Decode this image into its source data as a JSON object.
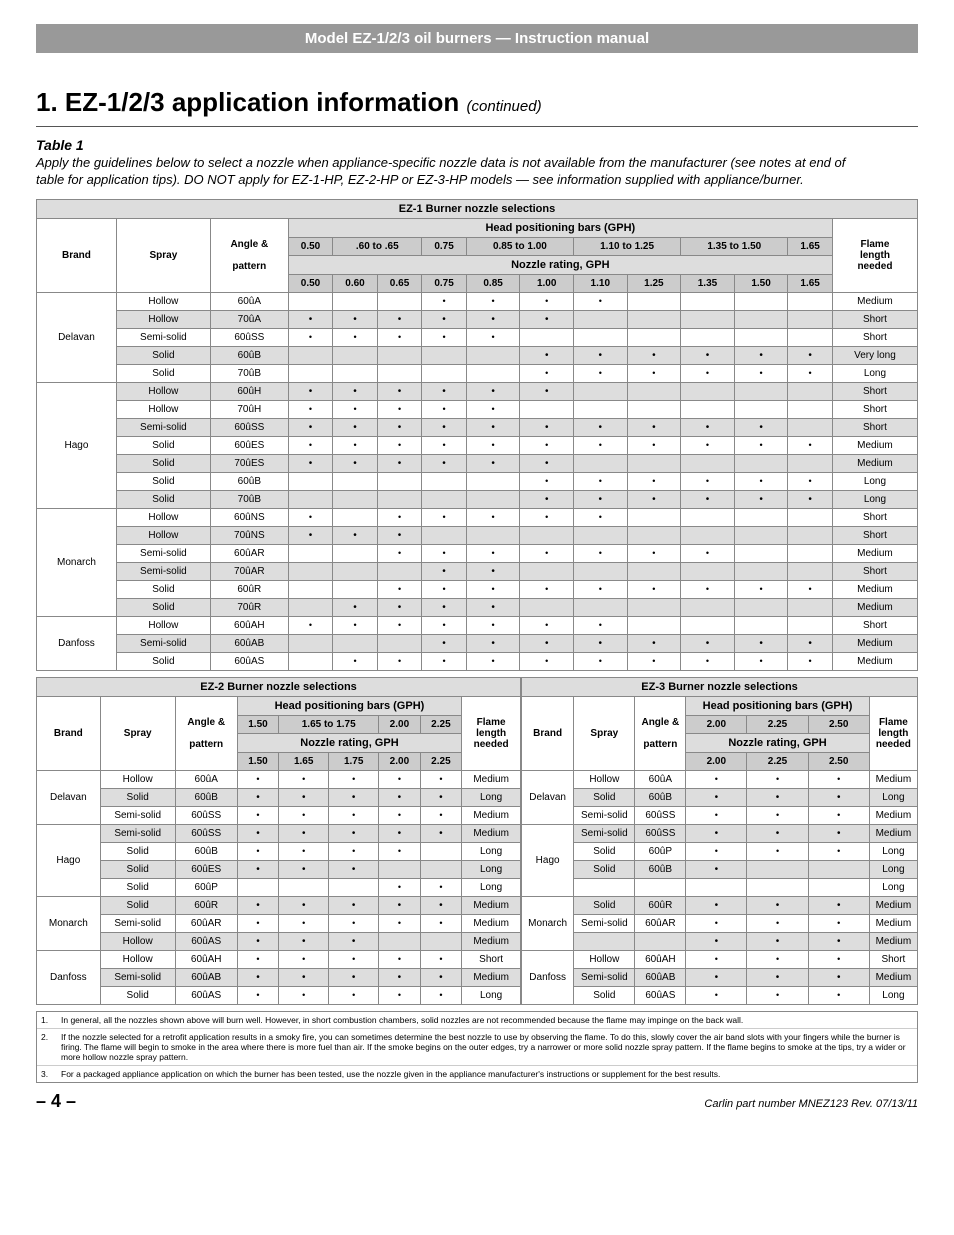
{
  "colors": {
    "topbar_bg": "#999999",
    "topbar_fg": "#ffffff",
    "band_bg": "#dddddd",
    "hdr2_bg": "#cccccc",
    "shade_bg": "#dddddd",
    "border": "#888888"
  },
  "topbar": "Model EZ-1/2/3 oil burners — Instruction manual",
  "section_title_pre": "1.  EZ-1/2/3 application information",
  "section_title_cont": "(continued)",
  "table_label": "Table 1",
  "table_caption": "Apply the guidelines below to select a nozzle when appliance-specific nozzle data is not available from the manufacturer (see notes at end of table for application tips). DO NOT apply for EZ-1-HP, EZ-2-HP or EZ-3-HP models — see information supplied with appliance/burner.",
  "ez1": {
    "title": "EZ-1 Burner nozzle selections",
    "head_pos": "Head positioning bars (GPH)",
    "nozzle_rating": "Nozzle rating, GPH",
    "col_brand": "Brand",
    "col_spray": "Spray",
    "col_angle": "Angle & pattern",
    "col_flame": "Flame length needed",
    "top_cols": [
      "0.50",
      ".60 to .65",
      "0.75",
      "0.85 to 1.00",
      "1.10 to 1.25",
      "1.35 to 1.50",
      "1.65"
    ],
    "rating_cols": [
      "0.50",
      "0.60",
      "0.65",
      "0.75",
      "0.85",
      "1.00",
      "1.10",
      "1.25",
      "1.35",
      "1.50",
      "1.65"
    ],
    "groups": [
      {
        "brand": "Delavan",
        "rows": [
          {
            "spray": "Hollow",
            "ap": "60ûA",
            "d": [
              0,
              0,
              0,
              1,
              1,
              1,
              1,
              0,
              0,
              0,
              0
            ],
            "fl": "Medium",
            "s": 0
          },
          {
            "spray": "Hollow",
            "ap": "70ûA",
            "d": [
              1,
              1,
              1,
              1,
              1,
              1,
              0,
              0,
              0,
              0,
              0
            ],
            "fl": "Short",
            "s": 1
          },
          {
            "spray": "Semi-solid",
            "ap": "60ûSS",
            "d": [
              1,
              1,
              1,
              1,
              1,
              0,
              0,
              0,
              0,
              0,
              0
            ],
            "fl": "Short",
            "s": 0
          },
          {
            "spray": "Solid",
            "ap": "60ûB",
            "d": [
              0,
              0,
              0,
              0,
              0,
              1,
              1,
              1,
              1,
              1,
              1
            ],
            "fl": "Very long",
            "s": 1
          },
          {
            "spray": "Solid",
            "ap": "70ûB",
            "d": [
              0,
              0,
              0,
              0,
              0,
              1,
              1,
              1,
              1,
              1,
              1
            ],
            "fl": "Long",
            "s": 0
          }
        ]
      },
      {
        "brand": "Hago",
        "rows": [
          {
            "spray": "Hollow",
            "ap": "60ûH",
            "d": [
              1,
              1,
              1,
              1,
              1,
              1,
              0,
              0,
              0,
              0,
              0
            ],
            "fl": "Short",
            "s": 1
          },
          {
            "spray": "Hollow",
            "ap": "70ûH",
            "d": [
              1,
              1,
              1,
              1,
              1,
              0,
              0,
              0,
              0,
              0,
              0
            ],
            "fl": "Short",
            "s": 0
          },
          {
            "spray": "Semi-solid",
            "ap": "60ûSS",
            "d": [
              1,
              1,
              1,
              1,
              1,
              1,
              1,
              1,
              1,
              1,
              0
            ],
            "fl": "Short",
            "s": 1
          },
          {
            "spray": "Solid",
            "ap": "60ûES",
            "d": [
              1,
              1,
              1,
              1,
              1,
              1,
              1,
              1,
              1,
              1,
              1
            ],
            "fl": "Medium",
            "s": 0
          },
          {
            "spray": "Solid",
            "ap": "70ûES",
            "d": [
              1,
              1,
              1,
              1,
              1,
              1,
              0,
              0,
              0,
              0,
              0
            ],
            "fl": "Medium",
            "s": 1
          },
          {
            "spray": "Solid",
            "ap": "60ûB",
            "d": [
              0,
              0,
              0,
              0,
              0,
              1,
              1,
              1,
              1,
              1,
              1
            ],
            "fl": "Long",
            "s": 0
          },
          {
            "spray": "Solid",
            "ap": "70ûB",
            "d": [
              0,
              0,
              0,
              0,
              0,
              1,
              1,
              1,
              1,
              1,
              1
            ],
            "fl": "Long",
            "s": 1
          }
        ]
      },
      {
        "brand": "Monarch",
        "rows": [
          {
            "spray": "Hollow",
            "ap": "60ûNS",
            "d": [
              1,
              0,
              1,
              1,
              1,
              1,
              1,
              0,
              0,
              0,
              0
            ],
            "fl": "Short",
            "s": 0
          },
          {
            "spray": "Hollow",
            "ap": "70ûNS",
            "d": [
              1,
              1,
              1,
              0,
              0,
              0,
              0,
              0,
              0,
              0,
              0
            ],
            "fl": "Short",
            "s": 1
          },
          {
            "spray": "Semi-solid",
            "ap": "60ûAR",
            "d": [
              0,
              0,
              1,
              1,
              1,
              1,
              1,
              1,
              1,
              0,
              0
            ],
            "fl": "Medium",
            "s": 0
          },
          {
            "spray": "Semi-solid",
            "ap": "70ûAR",
            "d": [
              0,
              0,
              0,
              1,
              1,
              0,
              0,
              0,
              0,
              0,
              0
            ],
            "fl": "Short",
            "s": 1
          },
          {
            "spray": "Solid",
            "ap": "60ûR",
            "d": [
              0,
              0,
              1,
              1,
              1,
              1,
              1,
              1,
              1,
              1,
              1
            ],
            "fl": "Medium",
            "s": 0
          },
          {
            "spray": "Solid",
            "ap": "70ûR",
            "d": [
              0,
              1,
              1,
              1,
              1,
              0,
              0,
              0,
              0,
              0,
              0
            ],
            "fl": "Medium",
            "s": 1
          }
        ]
      },
      {
        "brand": "Danfoss",
        "rows": [
          {
            "spray": "Hollow",
            "ap": "60ûAH",
            "d": [
              1,
              1,
              1,
              1,
              1,
              1,
              1,
              0,
              0,
              0,
              0
            ],
            "fl": "Short",
            "s": 0
          },
          {
            "spray": "Semi-solid",
            "ap": "60ûAB",
            "d": [
              0,
              0,
              0,
              1,
              1,
              1,
              1,
              1,
              1,
              1,
              1
            ],
            "fl": "Medium",
            "s": 1
          },
          {
            "spray": "Solid",
            "ap": "60ûAS",
            "d": [
              0,
              1,
              1,
              1,
              1,
              1,
              1,
              1,
              1,
              1,
              1
            ],
            "fl": "Medium",
            "s": 0
          }
        ]
      }
    ]
  },
  "ez2": {
    "title": "EZ-2 Burner nozzle selections",
    "top_cols": [
      "1.50",
      "1.65 to 1.75",
      "2.00",
      "2.25"
    ],
    "rating_cols": [
      "1.50",
      "1.65",
      "1.75",
      "2.00",
      "2.25"
    ],
    "groups": [
      {
        "brand": "Delavan",
        "rows": [
          {
            "spray": "Hollow",
            "ap": "60ûA",
            "d": [
              1,
              1,
              1,
              1,
              1
            ],
            "fl": "Medium",
            "s": 0
          },
          {
            "spray": "Solid",
            "ap": "60ûB",
            "d": [
              1,
              1,
              1,
              1,
              1
            ],
            "fl": "Long",
            "s": 1
          },
          {
            "spray": "Semi-solid",
            "ap": "60ûSS",
            "d": [
              1,
              1,
              1,
              1,
              1
            ],
            "fl": "Medium",
            "s": 0
          }
        ]
      },
      {
        "brand": "Hago",
        "rows": [
          {
            "spray": "Semi-solid",
            "ap": "60ûSS",
            "d": [
              1,
              1,
              1,
              1,
              1
            ],
            "fl": "Medium",
            "s": 1
          },
          {
            "spray": "Solid",
            "ap": "60ûB",
            "d": [
              1,
              1,
              1,
              1,
              0
            ],
            "fl": "Long",
            "s": 0
          },
          {
            "spray": "Solid",
            "ap": "60ûES",
            "d": [
              1,
              1,
              1,
              0,
              0
            ],
            "fl": "Long",
            "s": 1
          },
          {
            "spray": "Solid",
            "ap": "60ûP",
            "d": [
              0,
              0,
              0,
              1,
              1
            ],
            "fl": "Long",
            "s": 0
          }
        ]
      },
      {
        "brand": "Monarch",
        "rows": [
          {
            "spray": "Solid",
            "ap": "60ûR",
            "d": [
              1,
              1,
              1,
              1,
              1
            ],
            "fl": "Medium",
            "s": 1
          },
          {
            "spray": "Semi-solid",
            "ap": "60ûAR",
            "d": [
              1,
              1,
              1,
              1,
              1
            ],
            "fl": "Medium",
            "s": 0
          },
          {
            "spray": "Hollow",
            "ap": "60ûAS",
            "d": [
              1,
              1,
              1,
              0,
              0
            ],
            "fl": "Medium",
            "s": 1
          }
        ]
      },
      {
        "brand": "Danfoss",
        "rows": [
          {
            "spray": "Hollow",
            "ap": "60ûAH",
            "d": [
              1,
              1,
              1,
              1,
              1
            ],
            "fl": "Short",
            "s": 0
          },
          {
            "spray": "Semi-solid",
            "ap": "60ûAB",
            "d": [
              1,
              1,
              1,
              1,
              1
            ],
            "fl": "Medium",
            "s": 1
          },
          {
            "spray": "Solid",
            "ap": "60ûAS",
            "d": [
              1,
              1,
              1,
              1,
              1
            ],
            "fl": "Long",
            "s": 0
          }
        ]
      }
    ]
  },
  "ez3": {
    "title": "EZ-3 Burner nozzle selections",
    "head_pos": "Head positioning bars (GPH)",
    "top_cols": [
      "2.00",
      "2.25",
      "2.50"
    ],
    "rating_cols": [
      "2.00",
      "2.25",
      "2.50"
    ],
    "groups": [
      {
        "brand": "Delavan",
        "rows": [
          {
            "spray": "Hollow",
            "ap": "60ûA",
            "d": [
              1,
              1,
              1
            ],
            "fl": "Medium",
            "s": 0
          },
          {
            "spray": "Solid",
            "ap": "60ûB",
            "d": [
              1,
              1,
              1
            ],
            "fl": "Long",
            "s": 1
          },
          {
            "spray": "Semi-solid",
            "ap": "60ûSS",
            "d": [
              1,
              1,
              1
            ],
            "fl": "Medium",
            "s": 0
          }
        ]
      },
      {
        "brand": "Hago",
        "rows": [
          {
            "spray": "Semi-solid",
            "ap": "60ûSS",
            "d": [
              1,
              1,
              1
            ],
            "fl": "Medium",
            "s": 1
          },
          {
            "spray": "Solid",
            "ap": "60ûP",
            "d": [
              1,
              1,
              1
            ],
            "fl": "Long",
            "s": 0
          },
          {
            "spray": "Solid",
            "ap": "60ûB",
            "d": [
              1,
              0,
              0
            ],
            "fl": "Long",
            "s": 1
          },
          {
            "spray": "",
            "ap": "",
            "d": [
              0,
              0,
              0
            ],
            "fl": "Long",
            "s": 0
          }
        ]
      },
      {
        "brand": "Monarch",
        "rows": [
          {
            "spray": "Solid",
            "ap": "60ûR",
            "d": [
              1,
              1,
              1
            ],
            "fl": "Medium",
            "s": 1
          },
          {
            "spray": "Semi-solid",
            "ap": "60ûAR",
            "d": [
              1,
              1,
              1
            ],
            "fl": "Medium",
            "s": 0
          },
          {
            "spray": "",
            "ap": "",
            "d": [
              1,
              1,
              1
            ],
            "fl": "Medium",
            "s": 1
          }
        ]
      },
      {
        "brand": "Danfoss",
        "rows": [
          {
            "spray": "Hollow",
            "ap": "60ûAH",
            "d": [
              1,
              1,
              1
            ],
            "fl": "Short",
            "s": 0
          },
          {
            "spray": "Semi-solid",
            "ap": "60ûAB",
            "d": [
              1,
              1,
              1
            ],
            "fl": "Medium",
            "s": 1
          },
          {
            "spray": "Solid",
            "ap": "60ûAS",
            "d": [
              1,
              1,
              1
            ],
            "fl": "Long",
            "s": 0
          }
        ]
      }
    ]
  },
  "notes": [
    "In general, all the nozzles shown above will burn well. However, in short combustion chambers, solid nozzles are not recommended because the flame may impinge on the back wall.",
    "If the nozzle selected for a retrofit application results in a smoky fire, you can sometimes determine the best nozzle to use by observing the flame. To do this, slowly cover the air band slots with your fingers while the burner is firing. The flame will begin to smoke in the area where there is more fuel than air. If the smoke begins on the outer edges, try a narrower or more solid nozzle spray pattern. If the flame begins to smoke at the tips, try a wider or more hollow nozzle spray pattern.",
    "For a packaged appliance application on which the burner has been tested, use the nozzle given in the appliance manufacturer's instructions or supplement for the best results."
  ],
  "page_num": "– 4 –",
  "revision": "Carlin part number MNEZ123 Rev. 07/13/11"
}
